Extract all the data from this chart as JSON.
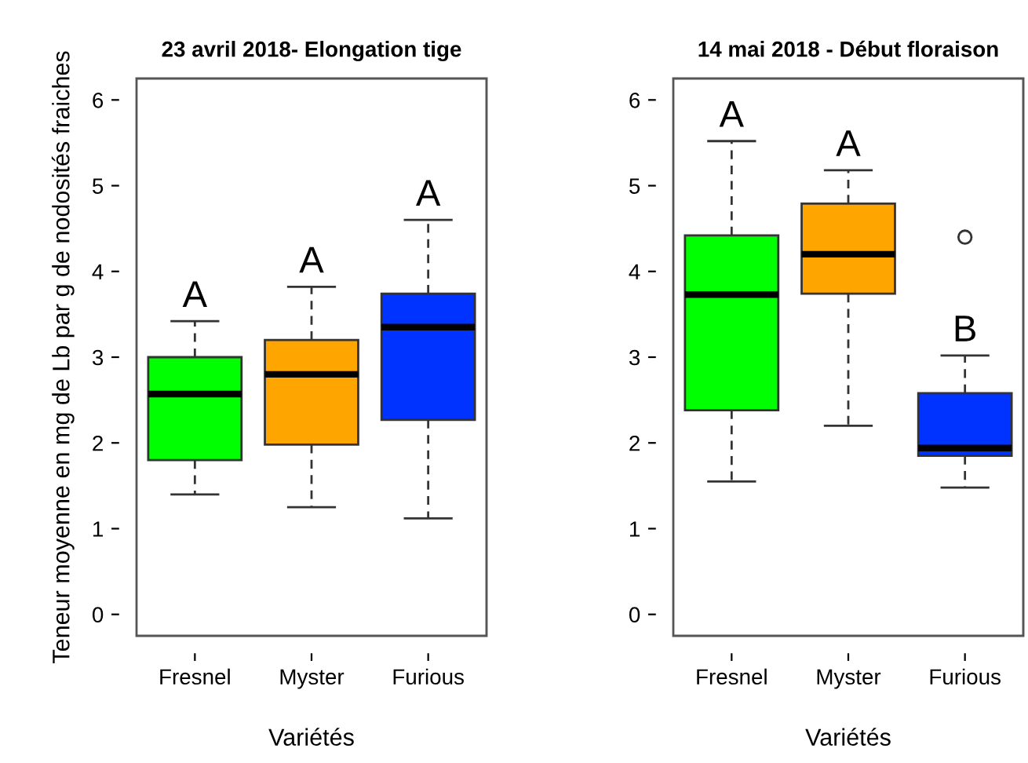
{
  "chart_data": [
    {
      "type": "box",
      "title": "23 avril 2018- Elongation tige",
      "xlabel": "Variétés",
      "ylabel": "Teneur moyenne en mg de Lb par g de nodosités fraiches",
      "categories": [
        "Fresnel",
        "Myster",
        "Furious"
      ],
      "colors": [
        "#00ff00",
        "#ffa500",
        "#0033ff"
      ],
      "boxes": [
        {
          "low": 1.4,
          "q1": 1.8,
          "median": 2.57,
          "q3": 3.0,
          "high": 3.42
        },
        {
          "low": 1.25,
          "q1": 1.98,
          "median": 2.8,
          "q3": 3.2,
          "high": 3.82
        },
        {
          "low": 1.12,
          "q1": 2.27,
          "median": 3.35,
          "q3": 3.74,
          "high": 4.6
        }
      ],
      "ylim": [
        -0.25,
        6.25
      ],
      "yticks": [
        0,
        1,
        2,
        3,
        4,
        5,
        6
      ],
      "grid": false,
      "annotations": [
        "A",
        "A",
        "A"
      ]
    },
    {
      "type": "box",
      "title": "14 mai 2018 - Début floraison",
      "xlabel": "Variétés",
      "categories": [
        "Fresnel",
        "Myster",
        "Furious"
      ],
      "colors": [
        "#00ff00",
        "#ffa500",
        "#0033ff"
      ],
      "boxes": [
        {
          "low": 1.55,
          "q1": 2.38,
          "median": 3.73,
          "q3": 4.42,
          "high": 5.52
        },
        {
          "low": 2.2,
          "q1": 3.74,
          "median": 4.2,
          "q3": 4.79,
          "high": 5.18
        },
        {
          "low": 1.48,
          "q1": 1.85,
          "median": 1.94,
          "q3": 2.58,
          "high": 3.02,
          "outliers": [
            4.4
          ]
        }
      ],
      "ylim": [
        -0.25,
        6.25
      ],
      "yticks": [
        0,
        1,
        2,
        3,
        4,
        5,
        6
      ],
      "grid": false,
      "annotations": [
        "A",
        "A",
        "B"
      ]
    }
  ]
}
